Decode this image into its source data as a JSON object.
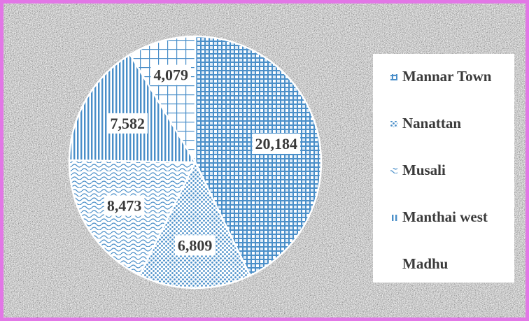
{
  "chart_data": {
    "type": "pie",
    "labels": [
      "Mannar Town",
      "Nanattan",
      "Musali",
      "Manthai west",
      "Madhu"
    ],
    "values": [
      20184,
      6809,
      8473,
      7582,
      4079
    ],
    "value_labels": [
      "20,184",
      "6,809",
      "8,473",
      "7,582",
      "4,079"
    ],
    "patterns": [
      "diamond-grid",
      "dots",
      "wave",
      "vertical-lines",
      "grid"
    ],
    "legend_markers": [
      "⟗",
      "⁂",
      "λ",
      "‖",
      "⊤"
    ],
    "color": "#4a8fc9",
    "start_angle": "12 o'clock",
    "direction": "clockwise",
    "legend_position": "right"
  },
  "colors": {
    "border": "#e277e6",
    "slice_fill": "#4a8fc9",
    "label_text": "#3a3a3a",
    "legend_bg": "#ffffff"
  }
}
